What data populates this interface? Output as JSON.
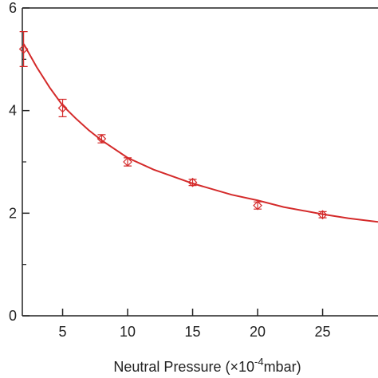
{
  "chart_data": {
    "type": "scatter",
    "xlabel": {
      "text": "Neutral Pressure (×10",
      "sup": "-4",
      "after": "mbar)"
    },
    "xlim": [
      1.9,
      29.26
    ],
    "ylim": [
      0,
      6
    ],
    "xticks": [
      5,
      10,
      15,
      20,
      25
    ],
    "yticks": [
      0,
      2,
      4,
      6
    ],
    "yminor": [
      1,
      3,
      5
    ],
    "series": [
      {
        "color": "#d42a2a",
        "x": [
          2,
          5,
          8,
          10,
          15,
          20,
          25
        ],
        "values": [
          5.2,
          4.05,
          3.45,
          3.0,
          2.6,
          2.15,
          1.97
        ],
        "errors": [
          0.34,
          0.17,
          0.08,
          0.08,
          0.06,
          0.07,
          0.06
        ]
      }
    ],
    "fit": {
      "color": "#d42a2a",
      "x": [
        2,
        3,
        4,
        5,
        6,
        7,
        8,
        10,
        12,
        15,
        18,
        20,
        22,
        25,
        27,
        29.26
      ],
      "values": [
        5.3,
        4.85,
        4.45,
        4.1,
        3.85,
        3.62,
        3.42,
        3.08,
        2.85,
        2.58,
        2.36,
        2.25,
        2.12,
        1.98,
        1.9,
        1.83
      ]
    }
  }
}
